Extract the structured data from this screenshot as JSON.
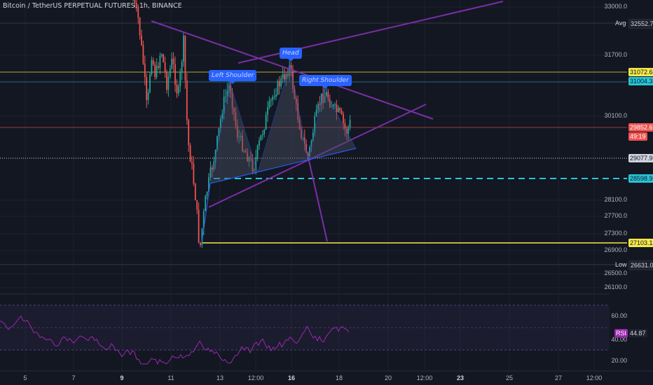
{
  "header": {
    "title": "Bitcoin / TetherUS PERPETUAL FUTURES, 1h, BINANCE"
  },
  "price_axis": {
    "labels": [
      "33000.0",
      "31700.0",
      "30100.0",
      "28100.0",
      "27700.0",
      "27300.0",
      "26900.0",
      "26500.0",
      "26100.0"
    ]
  },
  "tags": {
    "avg_label": "Avg",
    "avg_value": "32552.7",
    "level_1": "31072.6",
    "level_2": "31004.3",
    "current_price": "29852.6",
    "countdown": "49:19",
    "level_3": "29077.9",
    "level_4": "28598.9",
    "level_5": "27103.1",
    "low_label": "Low",
    "low_value": "26631.0"
  },
  "annotations": {
    "head": "Head",
    "left_shoulder": "Left Shoulder",
    "right_shoulder": "Right Shoulder"
  },
  "rsi": {
    "label": "RSI",
    "value": "44.87",
    "axis": [
      "60.00",
      "40.00",
      "20.00"
    ]
  },
  "time_axis": {
    "ticks": [
      {
        "label": "5",
        "bold": false
      },
      {
        "label": "7",
        "bold": false
      },
      {
        "label": "9",
        "bold": true
      },
      {
        "label": "11",
        "bold": false
      },
      {
        "label": "13",
        "bold": false
      },
      {
        "label": "12:00",
        "bold": false
      },
      {
        "label": "16",
        "bold": true
      },
      {
        "label": "18",
        "bold": false
      },
      {
        "label": "20",
        "bold": false
      },
      {
        "label": "12:00",
        "bold": false
      },
      {
        "label": "23",
        "bold": true
      },
      {
        "label": "25",
        "bold": false
      },
      {
        "label": "27",
        "bold": false
      },
      {
        "label": "12:00",
        "bold": false
      }
    ]
  },
  "colors": {
    "background": "#131722",
    "up": "#26a69a",
    "down": "#ef5350",
    "pattern": "#7b2ea6",
    "neckline": "#2962ff",
    "level_yellow": "#f5e94a",
    "level_cyan": "#26c6da",
    "rsi": "#9c27b0"
  },
  "chart_data": {
    "type": "candlestick",
    "instrument": "Bitcoin / TetherUS PERPETUAL FUTURES",
    "interval": "1h",
    "exchange": "BINANCE",
    "price_axis_range": [
      26100,
      33000
    ],
    "price_levels": [
      31072.6,
      31004.3,
      29852.6,
      29077.9,
      28598.9,
      27103.1
    ],
    "average": 32552.7,
    "low": 26631.0,
    "pattern": [
      "Left Shoulder",
      "Head",
      "Right Shoulder"
    ],
    "rsi": {
      "value": 44.87,
      "levels": [
        60,
        40,
        20
      ]
    }
  }
}
